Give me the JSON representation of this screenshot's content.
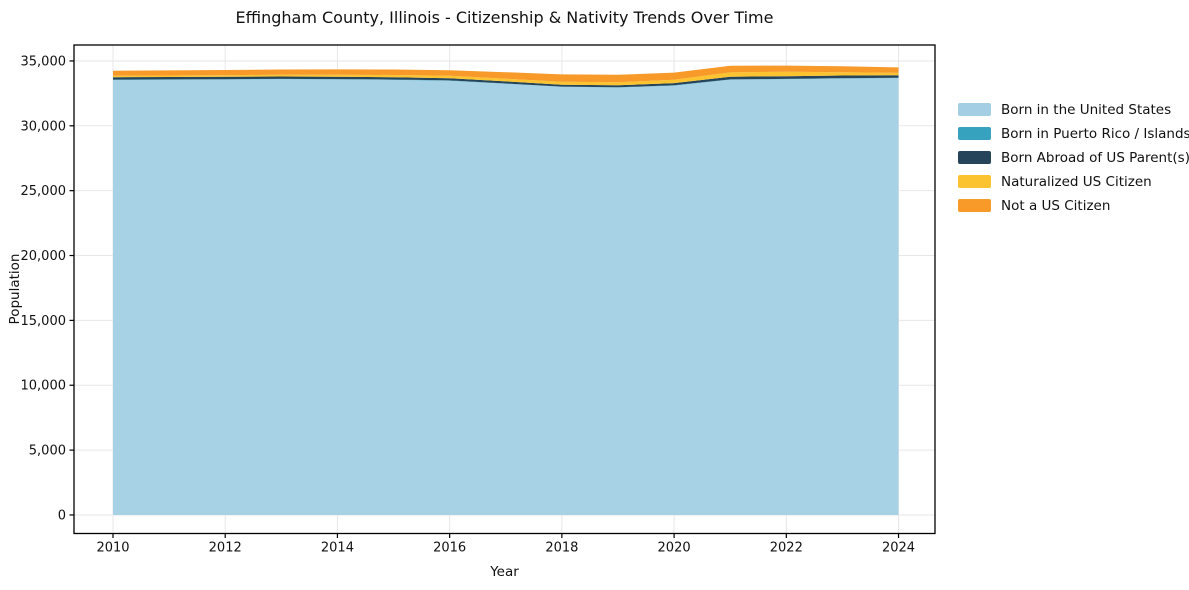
{
  "chart": {
    "title": "Effingham County, Illinois - Citizenship & Nativity Trends Over Time",
    "xlabel": "Year",
    "ylabel": "Population"
  },
  "chart_data": {
    "type": "area",
    "stacked": true,
    "title": "Effingham County, Illinois - Citizenship & Nativity Trends Over Time",
    "xlabel": "Year",
    "ylabel": "Population",
    "x": [
      2010,
      2011,
      2012,
      2013,
      2014,
      2015,
      2016,
      2017,
      2018,
      2019,
      2020,
      2021,
      2022,
      2023,
      2024
    ],
    "series": [
      {
        "name": "Born in the United States",
        "color": "#a7d2e6",
        "legend_color": "#a3cee3",
        "values": [
          33540,
          33555,
          33570,
          33600,
          33580,
          33540,
          33480,
          33250,
          33010,
          32950,
          33100,
          33560,
          33600,
          33650,
          33680
        ]
      },
      {
        "name": "Born in Puerto Rico / Islands",
        "color": "#37a2bd",
        "legend_color": "#37a2bd",
        "values": [
          20,
          20,
          25,
          15,
          20,
          30,
          20,
          15,
          10,
          20,
          25,
          15,
          20,
          25,
          20
        ]
      },
      {
        "name": "Born Abroad of US Parent(s)",
        "color": "#26455a",
        "legend_color": "#26455a",
        "values": [
          190,
          185,
          180,
          185,
          190,
          180,
          170,
          160,
          150,
          155,
          170,
          210,
          205,
          200,
          200
        ]
      },
      {
        "name": "Naturalized US Citizen",
        "color": "#fcc330",
        "legend_color": "#fcc330",
        "values": [
          110,
          120,
          130,
          140,
          150,
          170,
          190,
          210,
          230,
          240,
          250,
          330,
          340,
          260,
          180
        ]
      },
      {
        "name": "Not a US Citizen",
        "color": "#f79a29",
        "legend_color": "#f79a29",
        "values": [
          390,
          390,
          400,
          400,
          410,
          420,
          430,
          500,
          560,
          570,
          560,
          520,
          480,
          450,
          420
        ]
      }
    ],
    "xticks": [
      2010,
      2012,
      2014,
      2016,
      2018,
      2020,
      2022,
      2024
    ],
    "xtick_labels": [
      "2010",
      "2012",
      "2014",
      "2016",
      "2018",
      "2020",
      "2022",
      "2024"
    ],
    "yticks": [
      0,
      5000,
      10000,
      15000,
      20000,
      25000,
      30000,
      35000
    ],
    "ytick_labels": [
      "0",
      "5,000",
      "10,000",
      "15,000",
      "20,000",
      "25,000",
      "30,000",
      "35,000"
    ],
    "xlim": [
      2009.3,
      2024.65
    ],
    "ylim": [
      0,
      35000
    ],
    "grid": true,
    "grid_color": "#e7e7e7",
    "axis_color": "#000000",
    "legend_position": "right"
  }
}
